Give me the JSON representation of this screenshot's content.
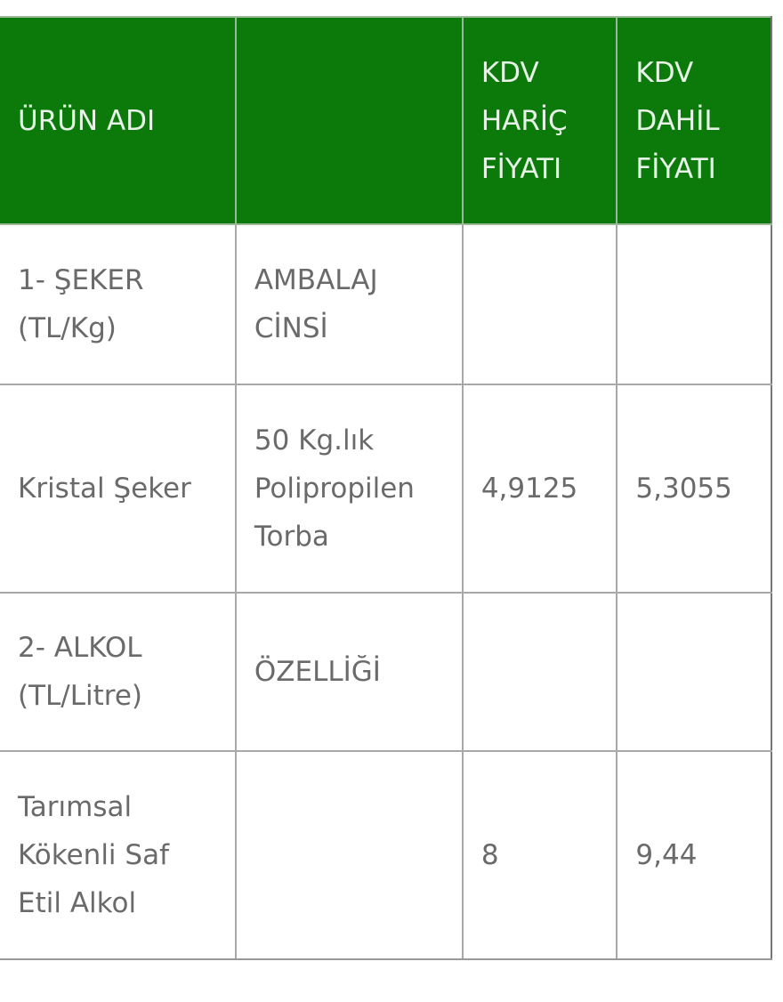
{
  "header": {
    "colors": {
      "header_bg": "#0b7a0b",
      "text": "#6a6a6a"
    },
    "columns": [
      "ÜRÜN ADI",
      "",
      "KDV HARİÇ FİYATI",
      "KDV DAHİL FİYATI"
    ]
  },
  "rows": [
    [
      "1- ŞEKER (TL/Kg)",
      "AMBALAJ CİNSİ",
      "",
      ""
    ],
    [
      "Kristal Şeker",
      "50 Kg.lık Polipropilen Torba",
      "4,9125",
      "5,3055"
    ],
    [
      "2- ALKOL (TL/Litre)",
      "ÖZELLİĞİ",
      "",
      ""
    ],
    [
      "Tarımsal Kökenli Saf Etil Alkol",
      "",
      "8",
      "9,44"
    ]
  ]
}
